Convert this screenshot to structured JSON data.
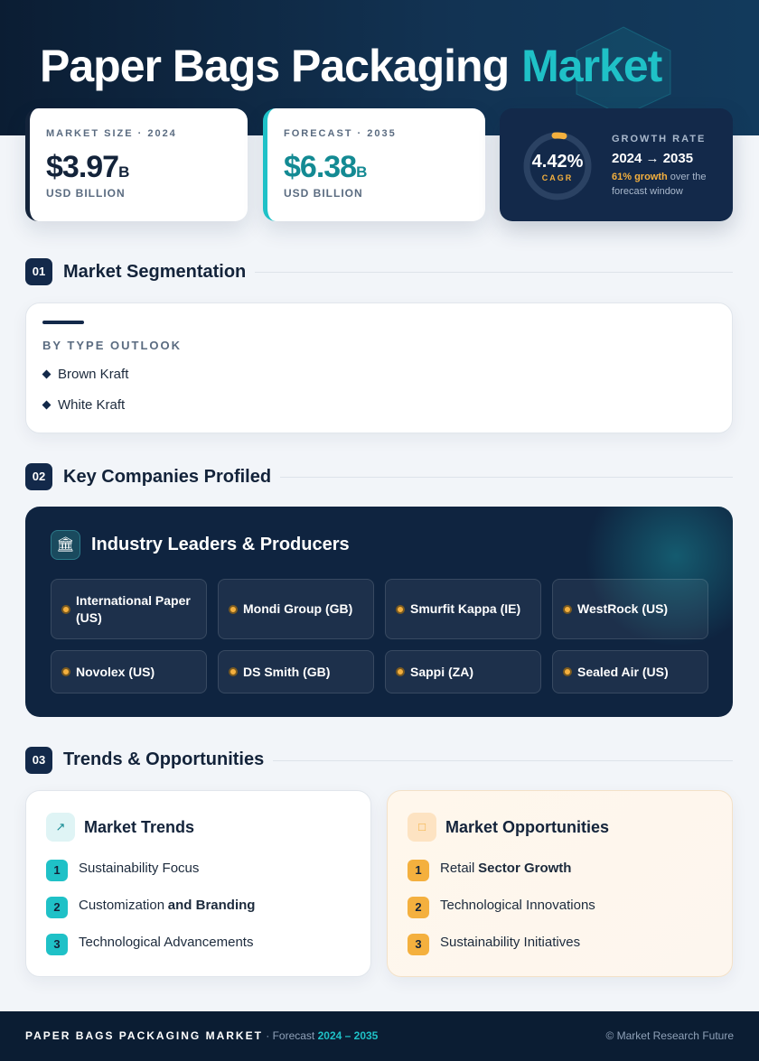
{
  "header": {
    "title": "Paper Bags Packaging",
    "title_accent": "Market"
  },
  "stats": [
    {
      "label": "MARKET SIZE · 2024",
      "value": "$3.97",
      "unit": "B",
      "caption": "USD BILLION"
    },
    {
      "label": "FORECAST · 2035",
      "value": "$6.38",
      "unit": "B",
      "caption": "USD BILLION"
    }
  ],
  "growth": {
    "value": "4.42%",
    "ring_label": "CAGR",
    "label": "GROWTH RATE",
    "period": "2024 → 2035",
    "highlight": "61% growth",
    "note": "over the forecast window"
  },
  "segmentation": {
    "number": "01",
    "title": "Market Segmentation",
    "card_title": "BY TYPE OUTLOOK",
    "items": [
      "Brown Kraft",
      "White Kraft"
    ]
  },
  "companies": {
    "number": "02",
    "title": "Key Companies Profiled",
    "card_title": "Industry Leaders & Producers",
    "items": [
      "International Paper (US)",
      "Mondi Group (GB)",
      "Smurfit Kappa (IE)",
      "WestRock (US)",
      "Novolex (US)",
      "DS Smith (GB)",
      "Sappi (ZA)",
      "Sealed Air (US)"
    ]
  },
  "trends": {
    "number": "03",
    "title": "Trends & Opportunities",
    "cards": [
      {
        "title": "Market Trends",
        "items": [
          {
            "num": "1",
            "text": "Sustainability Focus"
          },
          {
            "num": "2",
            "text": "Customization",
            "bold": "and Branding"
          },
          {
            "num": "3",
            "text": "Technological Advancements"
          }
        ]
      },
      {
        "title": "Market Opportunities",
        "items": [
          {
            "num": "1",
            "text": "Retail",
            "bold": "Sector Growth"
          },
          {
            "num": "2",
            "text": "Technological Innovations"
          },
          {
            "num": "3",
            "text": "Sustainability Initiatives"
          }
        ]
      }
    ]
  },
  "footer": {
    "title": "PAPER BAGS PACKAGING MARKET",
    "forecast": "· Forecast",
    "period": "2024 – 2035",
    "credit": "© Market Research Future"
  }
}
